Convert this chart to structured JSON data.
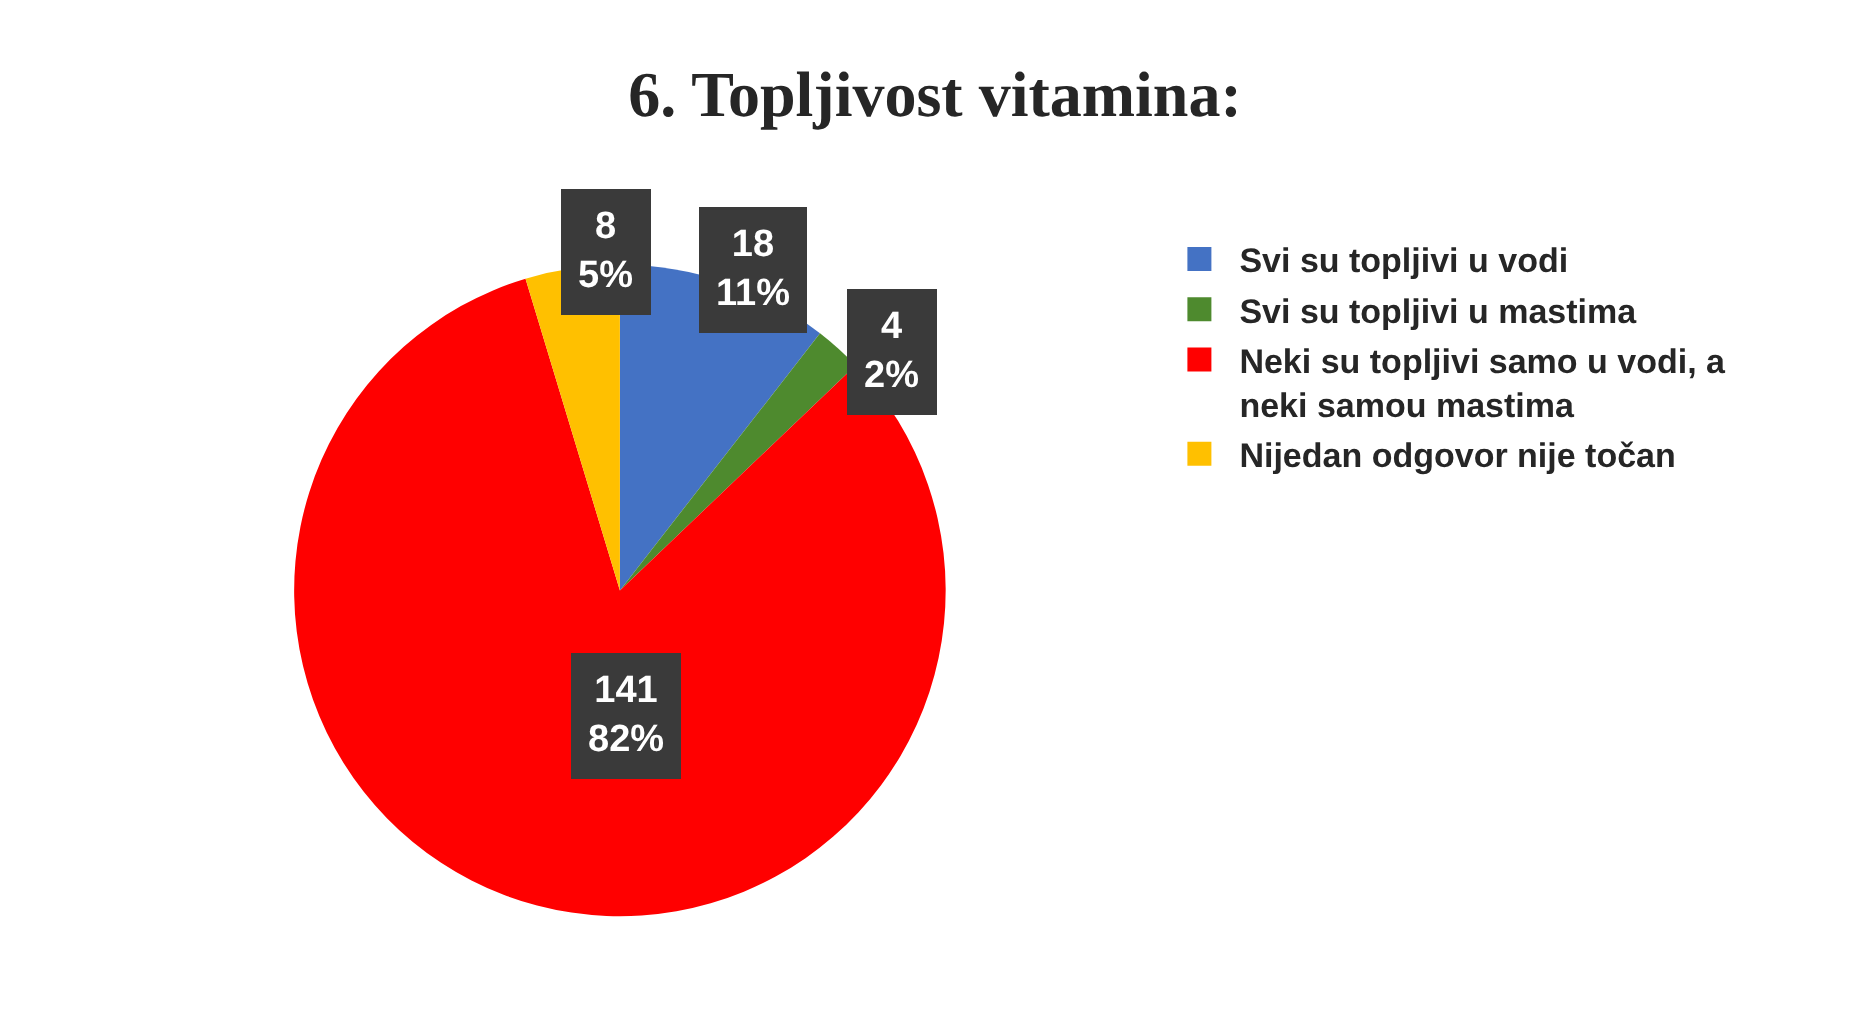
{
  "chart_data": {
    "type": "pie",
    "title": "6. Topljivost vitamina:",
    "categories": [
      "Svi su topljivi u vodi",
      "Svi su topljivi u mastima",
      "Neki su topljivi samo u vodi, a neki samou mastima",
      "Nijedan odgovor nije točan"
    ],
    "values": [
      18,
      4,
      141,
      8
    ],
    "colors": [
      "#4472c4",
      "#4e8a2e",
      "#ff0000",
      "#ffc000"
    ],
    "value_labels": [
      "18\n11%",
      "4\n2%",
      "141\n82%",
      "8\n5%"
    ],
    "legend": "right"
  }
}
